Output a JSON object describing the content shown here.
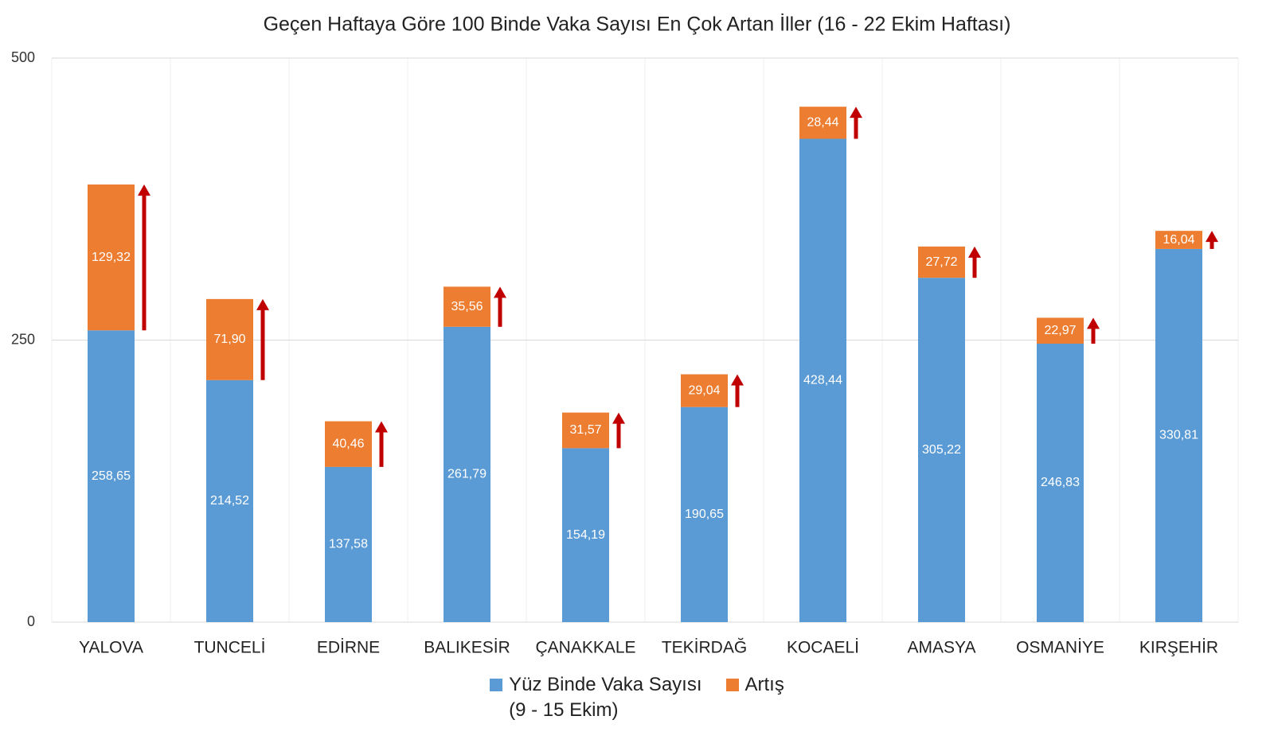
{
  "chart_data": {
    "type": "stacked-bar",
    "title": "Geçen Haftaya Göre 100 Binde Vaka Sayısı En Çok Artan İller (16 - 22 Ekim Haftası)",
    "categories": [
      "YALOVA",
      "TUNCELİ",
      "EDİRNE",
      "BALIKESİR",
      "ÇANAKKALE",
      "TEKİRDAĞ",
      "KOCAELİ",
      "AMASYA",
      "OSMANİYE",
      "KIRŞEHİR"
    ],
    "series": [
      {
        "name": "Yüz Binde Vaka Sayısı\n(9 - 15 Ekim)",
        "color": "#5b9bd5",
        "values": [
          258.65,
          214.52,
          137.58,
          261.79,
          154.19,
          190.65,
          428.44,
          305.22,
          246.83,
          330.81
        ],
        "value_labels": [
          "258,65",
          "214,52",
          "137,58",
          "261,79",
          "154,19",
          "190,65",
          "428,44",
          "305,22",
          "246,83",
          "330,81"
        ]
      },
      {
        "name": "Artış",
        "color": "#ed7d31",
        "values": [
          129.32,
          71.9,
          40.46,
          35.56,
          31.57,
          29.04,
          28.44,
          27.72,
          22.97,
          16.04
        ],
        "value_labels": [
          "129,32",
          "71,90",
          "40,46",
          "35,56",
          "31,57",
          "29,04",
          "28,44",
          "27,72",
          "22,97",
          "16,04"
        ]
      }
    ],
    "arrow_color": "#c00000",
    "ylim": [
      0,
      500
    ],
    "yticks": [
      0,
      250,
      500
    ],
    "grid": true,
    "legend": "bottom"
  }
}
